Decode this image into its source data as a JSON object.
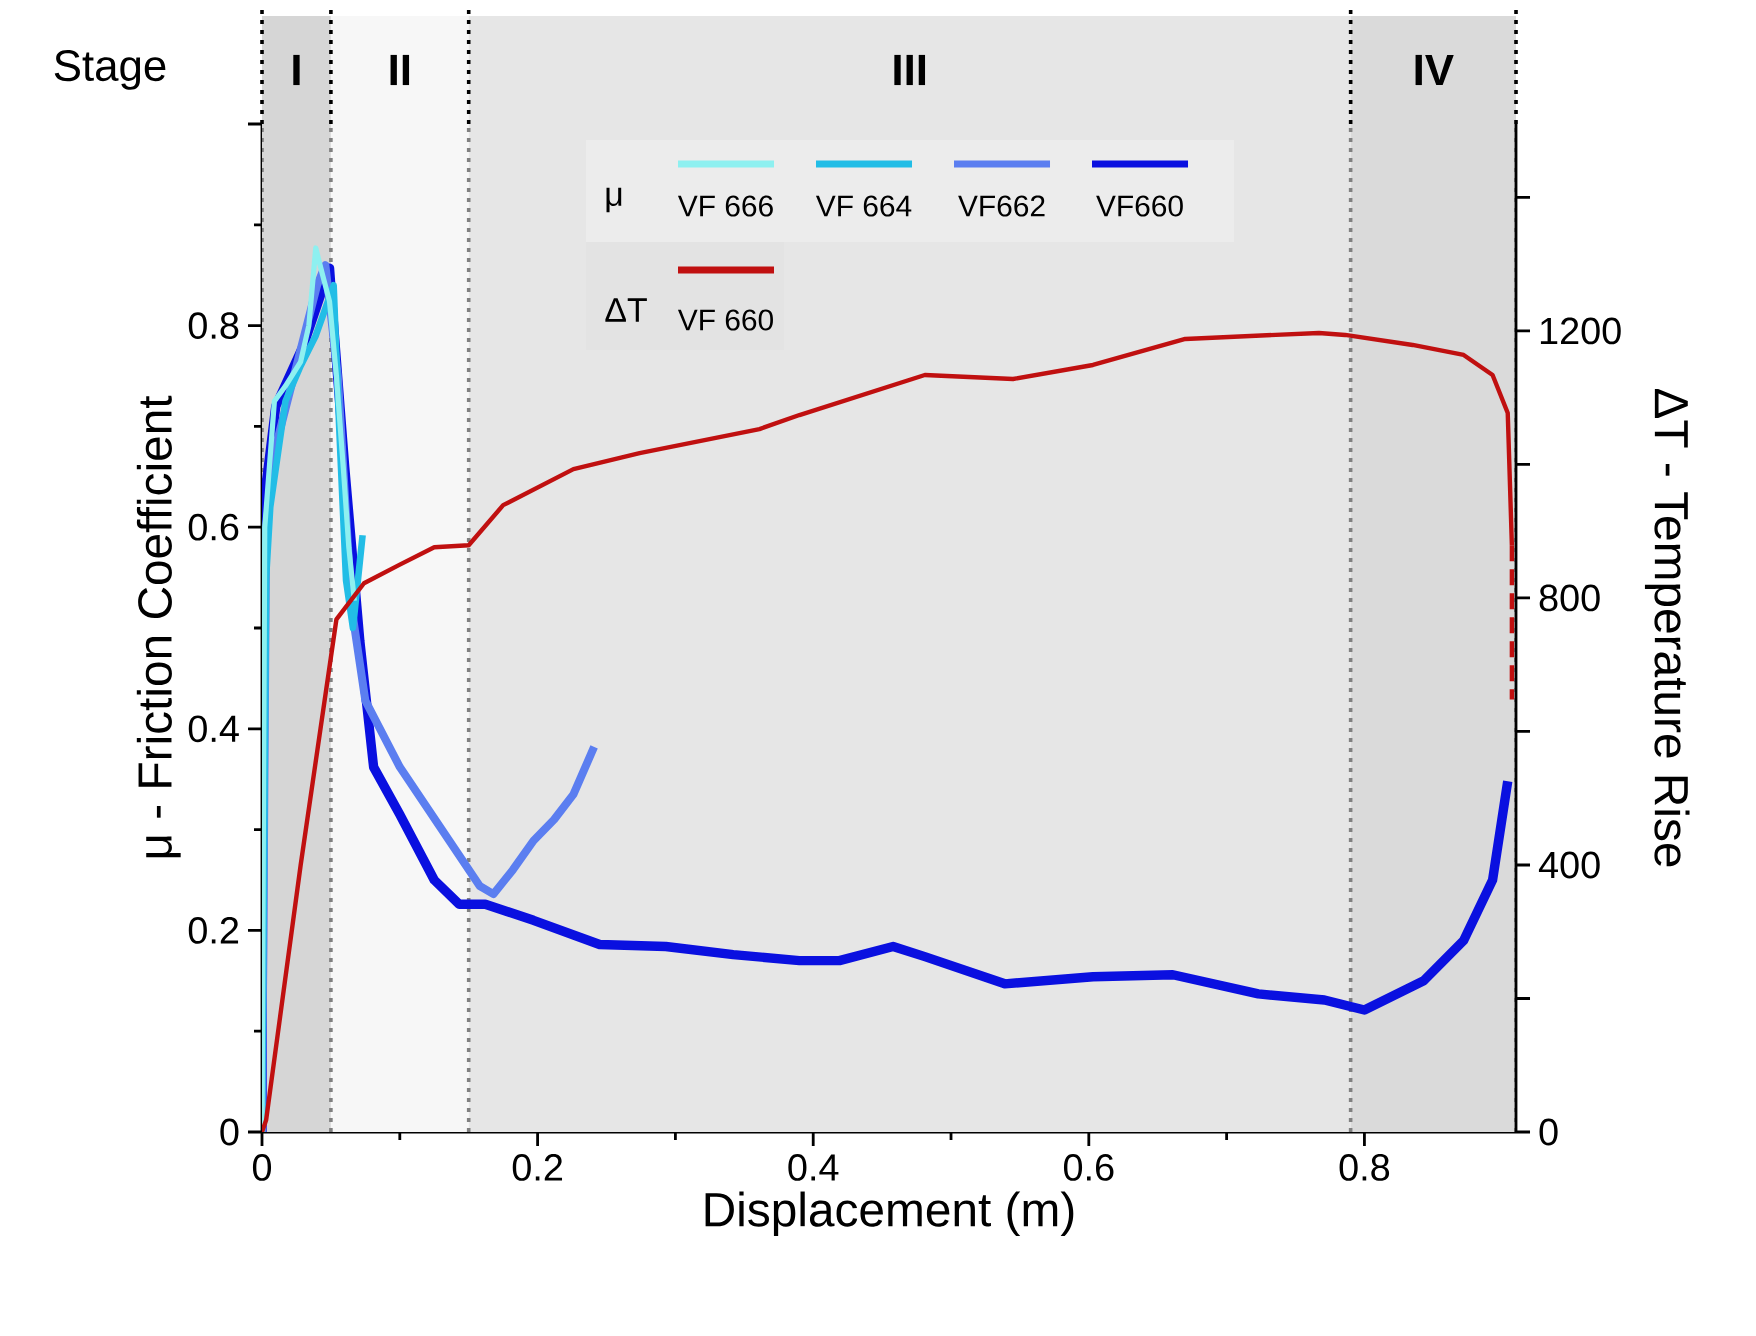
{
  "chart_data": {
    "type": "line",
    "xlabel": "Displacement (m)",
    "ylabel": "μ - Friction Coefficient",
    "y2label": "ΔT - Temperature Rise",
    "xlim": [
      0,
      0.91
    ],
    "xticks": [
      0,
      0.2,
      0.4,
      0.6,
      0.8
    ],
    "ylim": [
      0,
      1.0
    ],
    "yticks": [
      0,
      0.2,
      0.4,
      0.6,
      0.8,
      {
        "value": 1.0,
        "label": null
      }
    ],
    "y2lim": [
      0,
      1510
    ],
    "y2ticks": [
      0,
      {
        "value": 200,
        "label": null
      },
      400,
      {
        "value": 600,
        "label": null
      },
      800,
      {
        "value": 1000,
        "label": null
      },
      1200,
      {
        "value": 1400,
        "label": null
      }
    ],
    "legend": "top",
    "marker": "none",
    "annotations": [
      "Stage",
      "μ",
      "ΔT"
    ],
    "bands": [
      {
        "axis": "x",
        "from": 0,
        "to": 0.05,
        "label": "I",
        "color": "#d6d6d6"
      },
      {
        "axis": "x",
        "from": 0.05,
        "to": 0.15,
        "label": "II",
        "color": "#f7f7f7"
      },
      {
        "axis": "x",
        "from": 0.15,
        "to": 0.79,
        "label": "III",
        "color": "#e6e6e6"
      },
      {
        "axis": "x",
        "from": 0.79,
        "to": 0.91,
        "label": "IV",
        "color": "#dadada"
      }
    ],
    "series": [
      {
        "name": "VF 666",
        "color": "#8ef0f0",
        "x": [
          0,
          0.002,
          0.009,
          0.017,
          0.028,
          0.034,
          0.039,
          0.044,
          0.049,
          0.054,
          0.059,
          0.063,
          0.067
        ],
        "values": [
          0,
          0.6,
          0.725,
          0.74,
          0.764,
          0.8,
          0.877,
          0.85,
          0.824,
          0.75,
          0.659,
          0.58,
          0.527
        ]
      },
      {
        "name": "VF 664",
        "color": "#22bde6",
        "x": [
          0,
          0.003,
          0.006,
          0.017,
          0.028,
          0.039,
          0.052,
          0.056,
          0.061,
          0.066,
          0.073
        ],
        "values": [
          0,
          0.55,
          0.62,
          0.725,
          0.76,
          0.79,
          0.84,
          0.7,
          0.547,
          0.5,
          0.592
        ]
      },
      {
        "name": "VF662",
        "color": "#5b7ef0",
        "x": [
          0,
          0.003,
          0.01,
          0.025,
          0.04,
          0.046,
          0.055,
          0.065,
          0.075,
          0.1,
          0.129,
          0.158,
          0.168,
          0.182,
          0.197,
          0.212,
          0.226,
          0.241
        ],
        "values": [
          0,
          0.6,
          0.68,
          0.76,
          0.84,
          0.86,
          0.75,
          0.52,
          0.428,
          0.362,
          0.303,
          0.244,
          0.236,
          0.26,
          0.289,
          0.31,
          0.335,
          0.382
        ]
      },
      {
        "name": "VF660",
        "color": "#0a10e0",
        "x": [
          0,
          0.001,
          0.01,
          0.03,
          0.049,
          0.052,
          0.06,
          0.071,
          0.081,
          0.1,
          0.125,
          0.143,
          0.162,
          0.197,
          0.245,
          0.293,
          0.342,
          0.39,
          0.419,
          0.458,
          0.481,
          0.539,
          0.603,
          0.661,
          0.723,
          0.771,
          0.8,
          0.843,
          0.872,
          0.893,
          0.904
        ],
        "values": [
          0,
          0.62,
          0.72,
          0.78,
          0.857,
          0.8,
          0.66,
          0.487,
          0.362,
          0.315,
          0.25,
          0.226,
          0.226,
          0.21,
          0.186,
          0.184,
          0.176,
          0.17,
          0.17,
          0.184,
          0.174,
          0.147,
          0.154,
          0.156,
          0.137,
          0.131,
          0.121,
          0.15,
          0.19,
          0.25,
          0.348
        ]
      },
      {
        "name": "VF 660",
        "axis": "y2",
        "color": "#c01010",
        "x": [
          0,
          0.003,
          0.028,
          0.054,
          0.074,
          0.1,
          0.125,
          0.15,
          0.175,
          0.226,
          0.274,
          0.361,
          0.39,
          0.481,
          0.545,
          0.603,
          0.67,
          0.767,
          0.786,
          0.835,
          0.872,
          0.893,
          0.904,
          0.907
        ],
        "values": [
          0,
          18,
          399,
          768,
          822,
          850,
          876,
          879,
          939,
          993,
          1017,
          1053,
          1074,
          1134,
          1128,
          1149,
          1188,
          1197,
          1194,
          1179,
          1164,
          1134,
          1077,
          879
        ]
      },
      {
        "axis": "y2",
        "color": "#c01010",
        "line_style": "dashed",
        "x": [
          0.907,
          0.907
        ],
        "values": [
          879,
          648
        ]
      }
    ]
  }
}
